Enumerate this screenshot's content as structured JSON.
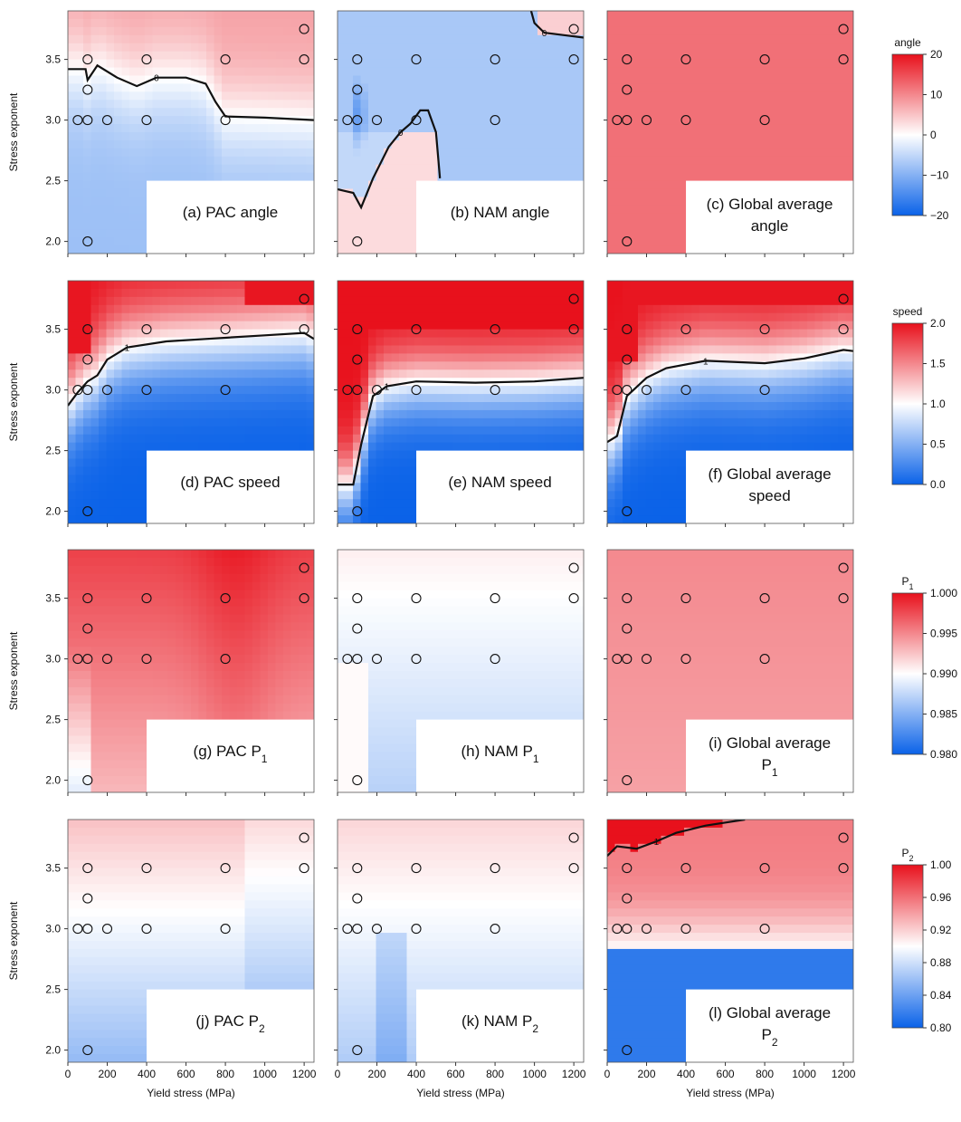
{
  "figure": {
    "ylabel": "Stress exponent",
    "xlabel": "Yield stress (MPa)",
    "x_ticks": [
      "0",
      "200",
      "400",
      "600",
      "800",
      "1000",
      "1200"
    ],
    "y_ticks": [
      "2.0",
      "2.5",
      "3.0",
      "3.5"
    ]
  },
  "colorbars": [
    {
      "title": "angle",
      "ticks": [
        "20",
        "10",
        "0",
        "−10",
        "−20"
      ],
      "min": -20,
      "max": 20
    },
    {
      "title": "speed",
      "ticks": [
        "2.0",
        "1.5",
        "1.0",
        "0.5",
        "0.0"
      ],
      "min": 0,
      "max": 2
    },
    {
      "title": "P1",
      "title_main": "P",
      "title_sub": "1",
      "ticks": [
        "1.000",
        "0.995",
        "0.990",
        "0.985",
        "0.980"
      ],
      "min": 0.98,
      "max": 1.0
    },
    {
      "title": "P2",
      "title_main": "P",
      "title_sub": "2",
      "ticks": [
        "1.00",
        "0.96",
        "0.92",
        "0.88",
        "0.84",
        "0.80"
      ],
      "min": 0.8,
      "max": 1.0
    }
  ],
  "colors": {
    "high": "#e8111c",
    "mid": "#ffffff",
    "low": "#0a62e8",
    "contour": "#111111"
  },
  "chart_data": {
    "type": "heatmap",
    "x_range": [
      0,
      1250
    ],
    "y_range": [
      1.9,
      3.9
    ],
    "grid": false,
    "sample_points": [
      {
        "x": 100,
        "y": 2.0
      },
      {
        "x": 50,
        "y": 3.0
      },
      {
        "x": 100,
        "y": 3.0
      },
      {
        "x": 200,
        "y": 3.0
      },
      {
        "x": 400,
        "y": 3.0
      },
      {
        "x": 800,
        "y": 3.0
      },
      {
        "x": 100,
        "y": 3.25
      },
      {
        "x": 100,
        "y": 3.5
      },
      {
        "x": 400,
        "y": 3.5
      },
      {
        "x": 800,
        "y": 3.5
      },
      {
        "x": 1200,
        "y": 3.5
      },
      {
        "x": 1200,
        "y": 3.75
      }
    ],
    "panels": [
      {
        "label": "(a) PAC angle",
        "quantity": "angle",
        "contour_label": "0",
        "contour": [
          [
            0,
            3.42
          ],
          [
            90,
            3.42
          ],
          [
            100,
            3.33
          ],
          [
            150,
            3.45
          ],
          [
            250,
            3.35
          ],
          [
            350,
            3.28
          ],
          [
            450,
            3.35
          ],
          [
            600,
            3.35
          ],
          [
            700,
            3.3
          ],
          [
            750,
            3.15
          ],
          [
            800,
            3.03
          ],
          [
            1000,
            3.02
          ],
          [
            1250,
            3.0
          ]
        ]
      },
      {
        "label": "(b) NAM angle",
        "quantity": "angle",
        "contour_label": "0",
        "contour": [
          [
            0,
            2.43
          ],
          [
            80,
            2.4
          ],
          [
            120,
            2.28
          ],
          [
            180,
            2.52
          ],
          [
            260,
            2.78
          ],
          [
            320,
            2.9
          ],
          [
            370,
            2.97
          ],
          [
            420,
            3.08
          ],
          [
            460,
            3.08
          ],
          [
            500,
            2.9
          ],
          [
            520,
            2.52
          ]
        ],
        "contour2": [
          [
            980,
            3.92
          ],
          [
            1000,
            3.8
          ],
          [
            1050,
            3.72
          ],
          [
            1150,
            3.7
          ],
          [
            1250,
            3.68
          ]
        ]
      },
      {
        "label": "(c) Global average angle",
        "quantity": "angle"
      },
      {
        "label": "(d) PAC speed",
        "quantity": "speed",
        "contour_label": "1",
        "contour": [
          [
            0,
            2.87
          ],
          [
            50,
            2.98
          ],
          [
            100,
            3.07
          ],
          [
            150,
            3.12
          ],
          [
            200,
            3.25
          ],
          [
            300,
            3.35
          ],
          [
            500,
            3.4
          ],
          [
            700,
            3.42
          ],
          [
            1000,
            3.45
          ],
          [
            1200,
            3.47
          ],
          [
            1250,
            3.42
          ]
        ]
      },
      {
        "label": "(e) NAM speed",
        "quantity": "speed",
        "contour_label": "1",
        "contour": [
          [
            0,
            2.22
          ],
          [
            80,
            2.22
          ],
          [
            120,
            2.55
          ],
          [
            180,
            2.95
          ],
          [
            250,
            3.03
          ],
          [
            400,
            3.07
          ],
          [
            700,
            3.06
          ],
          [
            1000,
            3.07
          ],
          [
            1250,
            3.1
          ]
        ]
      },
      {
        "label": "(f) Global average speed",
        "quantity": "speed",
        "contour_label": "1",
        "contour": [
          [
            0,
            2.57
          ],
          [
            50,
            2.62
          ],
          [
            100,
            2.95
          ],
          [
            200,
            3.1
          ],
          [
            300,
            3.18
          ],
          [
            500,
            3.24
          ],
          [
            800,
            3.22
          ],
          [
            1000,
            3.26
          ],
          [
            1200,
            3.33
          ],
          [
            1250,
            3.32
          ]
        ]
      },
      {
        "label": "(g) PAC P1",
        "quantity": "P1"
      },
      {
        "label": "(h) NAM P1",
        "quantity": "P1"
      },
      {
        "label": "(i) Global average P1",
        "quantity": "P1"
      },
      {
        "label": "(j) PAC P2",
        "quantity": "P2"
      },
      {
        "label": "(k) NAM P2",
        "quantity": "P2"
      },
      {
        "label": "(l) Global average P2",
        "quantity": "P2",
        "contour_label": "1",
        "contour": [
          [
            0,
            3.6
          ],
          [
            50,
            3.68
          ],
          [
            150,
            3.66
          ],
          [
            250,
            3.72
          ],
          [
            350,
            3.79
          ],
          [
            500,
            3.85
          ],
          [
            700,
            3.9
          ]
        ]
      }
    ]
  }
}
